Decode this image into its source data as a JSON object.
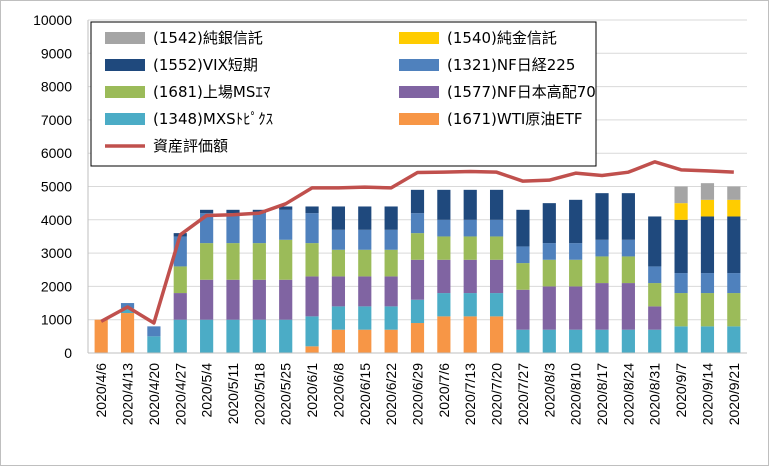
{
  "chart_data": {
    "type": "bar",
    "stacked": true,
    "ylim": [
      0,
      10000
    ],
    "yticks": [
      0,
      1000,
      2000,
      3000,
      4000,
      5000,
      6000,
      7000,
      8000,
      9000,
      10000
    ],
    "grid": true,
    "legend": "top-left",
    "categories": [
      "2020/4/6",
      "2020/4/13",
      "2020/4/20",
      "2020/4/27",
      "2020/5/4",
      "2020/5/11",
      "2020/5/18",
      "2020/5/25",
      "2020/6/1",
      "2020/6/8",
      "2020/6/15",
      "2020/6/22",
      "2020/6/29",
      "2020/7/6",
      "2020/7/13",
      "2020/7/20",
      "2020/7/27",
      "2020/8/3",
      "2020/8/10",
      "2020/8/17",
      "2020/8/24",
      "2020/8/31",
      "2020/9/7",
      "2020/9/14",
      "2020/9/21"
    ],
    "series": [
      {
        "name": "(1671)WTI原油ETF",
        "color": "#F79646",
        "values": [
          1000,
          1200,
          0,
          0,
          0,
          0,
          0,
          0,
          200,
          700,
          700,
          700,
          900,
          1100,
          1100,
          1100,
          0,
          0,
          0,
          0,
          0,
          0,
          0,
          0,
          0
        ]
      },
      {
        "name": "(1348)MXSﾄﾋﾟｸｽ",
        "color": "#4BACC6",
        "values": [
          0,
          150,
          500,
          1000,
          1000,
          1000,
          1000,
          1000,
          900,
          700,
          700,
          700,
          700,
          700,
          700,
          700,
          700,
          700,
          700,
          700,
          700,
          700,
          800,
          800,
          800
        ]
      },
      {
        "name": "(1577)NF日本高配70",
        "color": "#8064A2",
        "values": [
          0,
          0,
          0,
          800,
          1200,
          1200,
          1200,
          1200,
          1200,
          900,
          900,
          900,
          1200,
          1000,
          1000,
          1000,
          1200,
          1300,
          1300,
          1400,
          1400,
          700,
          0,
          0,
          0
        ]
      },
      {
        "name": "(1681)上場MSｴﾏ",
        "color": "#9BBB59",
        "values": [
          0,
          0,
          0,
          800,
          1100,
          1100,
          1100,
          1200,
          1000,
          800,
          800,
          800,
          800,
          700,
          700,
          700,
          800,
          800,
          800,
          800,
          800,
          700,
          1000,
          1000,
          1000
        ]
      },
      {
        "name": "(1321)NF日経225",
        "color": "#4F81BD",
        "values": [
          0,
          150,
          300,
          900,
          900,
          900,
          900,
          900,
          900,
          600,
          600,
          600,
          600,
          500,
          500,
          500,
          500,
          500,
          500,
          500,
          500,
          500,
          600,
          600,
          600
        ]
      },
      {
        "name": "(1552)VIX短期",
        "color": "#1F497D",
        "values": [
          0,
          0,
          0,
          100,
          100,
          100,
          100,
          100,
          200,
          700,
          700,
          700,
          700,
          900,
          900,
          900,
          1100,
          1200,
          1300,
          1400,
          1400,
          1500,
          1600,
          1700,
          1700
        ]
      },
      {
        "name": "(1540)純金信託",
        "color": "#FFCC00",
        "values": [
          0,
          0,
          0,
          0,
          0,
          0,
          0,
          0,
          0,
          0,
          0,
          0,
          0,
          0,
          0,
          0,
          0,
          0,
          0,
          0,
          0,
          0,
          500,
          500,
          500
        ]
      },
      {
        "name": "(1542)純銀信託",
        "color": "#A5A5A5",
        "values": [
          0,
          0,
          0,
          0,
          0,
          0,
          0,
          0,
          0,
          0,
          0,
          0,
          0,
          0,
          0,
          0,
          0,
          0,
          0,
          0,
          0,
          0,
          500,
          500,
          400
        ]
      }
    ],
    "line": {
      "name": "資産評価額",
      "color": "#C0504D",
      "values": [
        950,
        1380,
        900,
        3550,
        4130,
        4150,
        4200,
        4480,
        4960,
        4960,
        4980,
        4960,
        5420,
        5430,
        5450,
        5430,
        5160,
        5190,
        5400,
        5330,
        5430,
        5740,
        5500,
        5470,
        5430
      ]
    },
    "legend_order": [
      "(1542)純銀信託",
      "(1540)純金信託",
      "(1552)VIX短期",
      "(1321)NF日経225",
      "(1681)上場MSｴﾏ",
      "(1577)NF日本高配70",
      "(1348)MXSﾄﾋﾟｸｽ",
      "(1671)WTI原油ETF",
      "資産評価額"
    ]
  }
}
